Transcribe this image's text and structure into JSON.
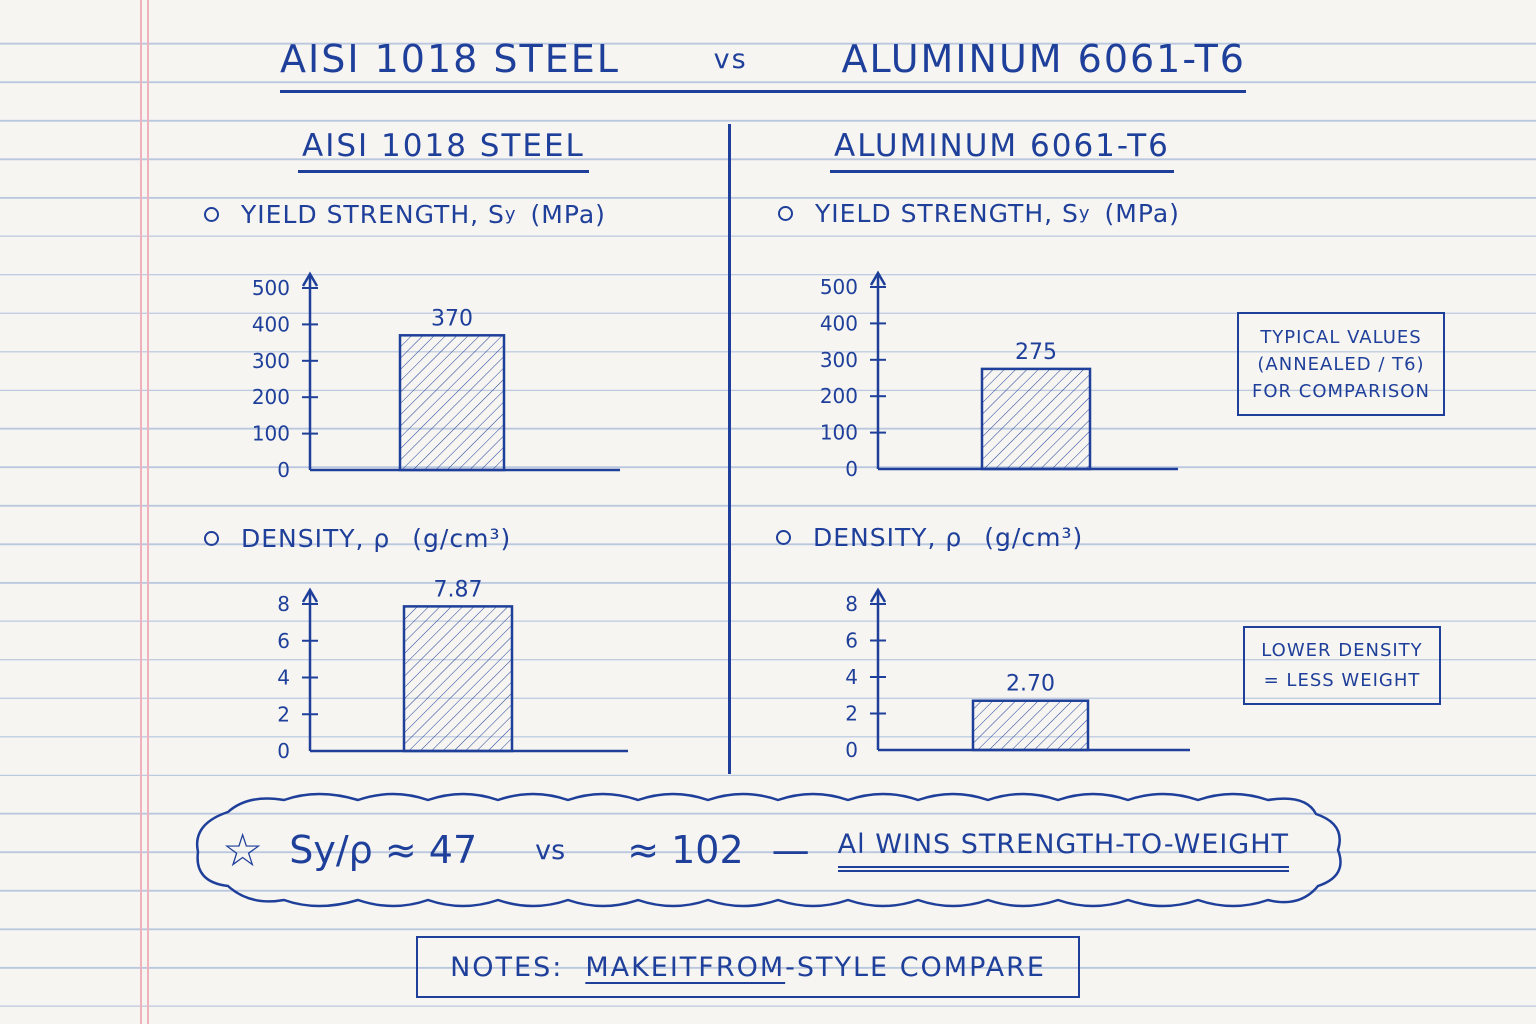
{
  "header": {
    "left": "AISI 1018 STEEL",
    "vs": "vs",
    "right": "ALUMINUM 6061-T6"
  },
  "sections": {
    "steel": "AISI 1018 STEEL",
    "aluminum": "ALUMINUM 6061-T6"
  },
  "labels": {
    "yield_prefix": "YIELD STRENGTH, S",
    "yield_sub": "y",
    "yield_unit": "(MPa)",
    "density_prefix": "DENSITY, ρ",
    "density_unit": "(g/cm³)"
  },
  "notes_side": {
    "typical_line1": "TYPICAL VALUES",
    "typical_line2": "(ANNEALED / T6)",
    "typical_line3": "FOR COMPARISON",
    "density_line1": "LOWER DENSITY",
    "density_line2": "= LESS WEIGHT"
  },
  "summary": {
    "star": "☆",
    "ratio_expr": "Sy/ρ ≈ 47",
    "vs": "vs",
    "ratio_al": "≈ 102",
    "dash": "—",
    "conclusion": "Al WINS STRENGTH-TO-WEIGHT"
  },
  "footer": {
    "prefix": "NOTES:",
    "underlined": "MAKEITFROM",
    "suffix": "-STYLE COMPARE"
  },
  "colors": {
    "ink": "#1e3f9a",
    "ruling": "#b9c7df",
    "margin": "#efb1bc",
    "paper": "#f7f5f1"
  },
  "chart_data": [
    {
      "type": "bar",
      "title": "YIELD STRENGTH, Sy (MPa)",
      "panel": "AISI 1018 STEEL",
      "categories": [
        "AISI 1018 STEEL"
      ],
      "values": [
        370
      ],
      "value_labels": [
        "370"
      ],
      "ylim": [
        0,
        500
      ],
      "yticks": [
        "0",
        "100",
        "200",
        "300",
        "400",
        "500"
      ],
      "ytick_values": [
        0,
        100,
        200,
        300,
        400,
        500
      ],
      "grid": false
    },
    {
      "type": "bar",
      "title": "YIELD STRENGTH, Sy (MPa)",
      "panel": "ALUMINUM 6061-T6",
      "categories": [
        "ALUMINUM 6061-T6"
      ],
      "values": [
        275
      ],
      "value_labels": [
        "275"
      ],
      "ylim": [
        0,
        500
      ],
      "yticks": [
        "0",
        "100",
        "200",
        "300",
        "400",
        "500"
      ],
      "ytick_values": [
        0,
        100,
        200,
        300,
        400,
        500
      ],
      "grid": false
    },
    {
      "type": "bar",
      "title": "DENSITY, ρ (g/cm³)",
      "panel": "AISI 1018 STEEL",
      "categories": [
        "AISI 1018 STEEL"
      ],
      "values": [
        7.87
      ],
      "value_labels": [
        "7.87"
      ],
      "ylim": [
        0,
        8
      ],
      "yticks": [
        "0",
        "2",
        "4",
        "6",
        "8"
      ],
      "ytick_values": [
        0,
        2,
        4,
        6,
        8
      ],
      "grid": false
    },
    {
      "type": "bar",
      "title": "DENSITY, ρ (g/cm³)",
      "panel": "ALUMINUM 6061-T6",
      "categories": [
        "ALUMINUM 6061-T6"
      ],
      "values": [
        2.7
      ],
      "value_labels": [
        "2.70"
      ],
      "ylim": [
        0,
        8
      ],
      "yticks": [
        "0",
        "2",
        "4",
        "6",
        "8"
      ],
      "ytick_values": [
        0,
        2,
        4,
        6,
        8
      ],
      "grid": false
    }
  ]
}
